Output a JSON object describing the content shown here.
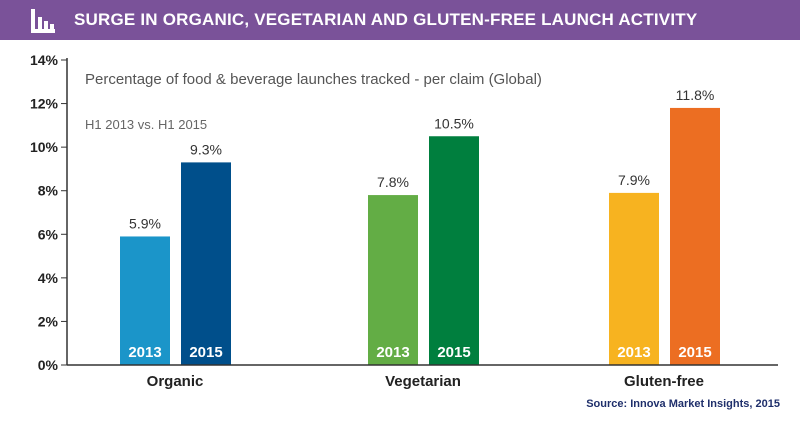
{
  "header": {
    "title": "SURGE IN ORGANIC, VEGETARIAN AND GLUTEN-FREE LAUNCH ACTIVITY",
    "icon": "bar-chart-icon",
    "color": "#7a5299"
  },
  "source": "Source: Innova Market Insights, 2015",
  "chart_data": {
    "type": "bar",
    "title": "Percentage of food & beverage launches tracked - per claim (Global)",
    "subtitle": "H1 2013 vs. H1 2015",
    "categories": [
      "Organic",
      "Vegetarian",
      "Gluten-free"
    ],
    "series": [
      {
        "name": "2013",
        "values": [
          5.9,
          7.8,
          7.9
        ],
        "labels": [
          "5.9%",
          "7.8%",
          "7.9%"
        ]
      },
      {
        "name": "2015",
        "values": [
          9.3,
          10.5,
          11.8
        ],
        "labels": [
          "9.3%",
          "10.5%",
          "11.8%"
        ]
      }
    ],
    "colors": [
      [
        "#1b95c9",
        "#004f8b"
      ],
      [
        "#63ad45",
        "#007f3e"
      ],
      [
        "#f7b320",
        "#ec6e22"
      ]
    ],
    "yticks": [
      "0%",
      "2%",
      "4%",
      "6%",
      "8%",
      "10%",
      "12%",
      "14%"
    ],
    "ylim": [
      0,
      14
    ],
    "grid": false,
    "legend": "none"
  }
}
